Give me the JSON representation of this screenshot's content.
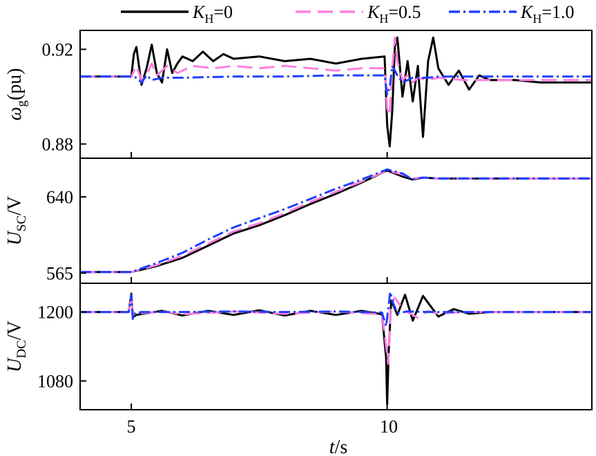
{
  "legend": [
    {
      "sym": "K",
      "sub": "H",
      "val": "=0",
      "color": "#000000",
      "dash": ""
    },
    {
      "sym": "K",
      "sub": "H",
      "val": "=0.5",
      "color": "#ff7fe0",
      "dash": "22,10"
    },
    {
      "sym": "K",
      "sub": "H",
      "val": "=1.0",
      "color": "#1f3fff",
      "dash": "16,5,3,5"
    }
  ],
  "xaxis": {
    "sym": "t",
    "unit": "/s",
    "ticks": [
      "5",
      "10"
    ]
  },
  "chart_data": [
    {
      "type": "line",
      "ylabel": {
        "sym": "ω",
        "sub": "g",
        "unit": "(pu)"
      },
      "xlim": [
        4,
        14
      ],
      "ylim": [
        0.874,
        0.928
      ],
      "yticks": [
        0.92,
        0.88
      ],
      "ytick_labels": [
        "0.92",
        "0.88"
      ],
      "series": [
        {
          "name": "KH=0",
          "color": "#000000",
          "x": [
            4,
            5,
            5.05,
            5.1,
            5.2,
            5.3,
            5.4,
            5.5,
            5.6,
            5.7,
            5.8,
            5.9,
            6.0,
            6.2,
            6.4,
            6.6,
            6.8,
            7,
            7.5,
            8,
            8.5,
            9,
            9.5,
            9.95,
            10.0,
            10.05,
            10.1,
            10.15,
            10.2,
            10.3,
            10.4,
            10.5,
            10.6,
            10.7,
            10.8,
            10.9,
            11.0,
            11.2,
            11.4,
            11.6,
            11.8,
            12,
            12.5,
            13,
            13.5,
            14
          ],
          "y": [
            0.9085,
            0.9085,
            0.918,
            0.921,
            0.905,
            0.912,
            0.922,
            0.91,
            0.906,
            0.92,
            0.91,
            0.914,
            0.917,
            0.915,
            0.919,
            0.915,
            0.918,
            0.916,
            0.917,
            0.915,
            0.916,
            0.914,
            0.916,
            0.917,
            0.888,
            0.879,
            0.894,
            0.921,
            0.925,
            0.9,
            0.915,
            0.898,
            0.913,
            0.883,
            0.915,
            0.925,
            0.912,
            0.905,
            0.911,
            0.903,
            0.909,
            0.907,
            0.907,
            0.906,
            0.906,
            0.906
          ]
        },
        {
          "name": "KH=0.5",
          "color": "#ff7fe0",
          "x": [
            4,
            5,
            5.1,
            5.2,
            5.3,
            5.4,
            5.5,
            5.7,
            5.9,
            6.2,
            6.6,
            7,
            7.5,
            8,
            8.5,
            9,
            9.5,
            9.95,
            10.0,
            10.05,
            10.1,
            10.15,
            10.2,
            10.3,
            10.4,
            10.5,
            10.6,
            10.8,
            11,
            11.5,
            12,
            13,
            14
          ],
          "y": [
            0.9085,
            0.9085,
            0.913,
            0.907,
            0.909,
            0.914,
            0.909,
            0.913,
            0.91,
            0.913,
            0.912,
            0.913,
            0.912,
            0.913,
            0.912,
            0.911,
            0.912,
            0.912,
            0.895,
            0.892,
            0.912,
            0.925,
            0.915,
            0.907,
            0.909,
            0.906,
            0.908,
            0.907,
            0.908,
            0.907,
            0.907,
            0.907,
            0.907
          ]
        },
        {
          "name": "KH=1.0",
          "color": "#1f3fff",
          "x": [
            4,
            5,
            5.1,
            5.2,
            5.3,
            5.4,
            5.6,
            6,
            7,
            8,
            9,
            9.95,
            10.0,
            10.05,
            10.1,
            10.2,
            10.3,
            10.5,
            10.8,
            11,
            11.5,
            12,
            13,
            14
          ],
          "y": [
            0.9085,
            0.9085,
            0.908,
            0.906,
            0.909,
            0.907,
            0.908,
            0.908,
            0.9085,
            0.9085,
            0.909,
            0.909,
            0.901,
            0.904,
            0.913,
            0.909,
            0.906,
            0.908,
            0.908,
            0.9085,
            0.9085,
            0.9085,
            0.9085,
            0.9085
          ]
        }
      ]
    },
    {
      "type": "line",
      "ylabel": {
        "sym": "U",
        "sub": "SC",
        "unit": "/V"
      },
      "xlim": [
        4,
        14
      ],
      "ylim": [
        555,
        678
      ],
      "yticks": [
        640,
        565
      ],
      "ytick_labels": [
        "640",
        "565"
      ],
      "series": [
        {
          "name": "KH=0",
          "color": "#000000",
          "x": [
            4,
            5,
            5.5,
            6,
            6.5,
            7,
            7.5,
            8,
            8.5,
            9,
            9.5,
            10,
            10.3,
            10.5,
            10.7,
            11,
            11.5,
            12,
            14
          ],
          "y": [
            566,
            566,
            572,
            580,
            592,
            604,
            612,
            622,
            633,
            643,
            654,
            666,
            660,
            657,
            659,
            658,
            658,
            658,
            658
          ]
        },
        {
          "name": "KH=0.5",
          "color": "#ff7fe0",
          "x": [
            4,
            5,
            5.5,
            6,
            6.5,
            7,
            7.5,
            8,
            8.5,
            9,
            9.5,
            10,
            10.3,
            10.5,
            10.7,
            11,
            14
          ],
          "y": [
            566,
            566,
            573,
            582,
            594,
            606,
            614,
            624,
            635,
            645,
            655,
            666,
            662,
            658,
            659,
            658,
            658
          ]
        },
        {
          "name": "KH=1.0",
          "color": "#1f3fff",
          "x": [
            4,
            5,
            5.5,
            6,
            6.5,
            7,
            7.5,
            8,
            8.5,
            9,
            9.5,
            10,
            10.3,
            10.5,
            10.7,
            11,
            14
          ],
          "y": [
            566,
            566,
            575,
            585,
            598,
            610,
            619,
            628,
            638,
            648,
            657,
            667,
            663,
            657,
            659,
            658,
            658
          ]
        }
      ]
    },
    {
      "type": "line",
      "ylabel": {
        "sym": "U",
        "sub": "DC",
        "unit": "/V"
      },
      "xlim": [
        4,
        14
      ],
      "ylim": [
        1030,
        1250
      ],
      "yticks": [
        1200,
        1080
      ],
      "ytick_labels": [
        "1200",
        "1080"
      ],
      "series": [
        {
          "name": "KH=0",
          "color": "#000000",
          "x": [
            4,
            4.95,
            5.0,
            5.02,
            5.05,
            5.1,
            5.3,
            5.6,
            6,
            6.5,
            7,
            7.5,
            8,
            8.5,
            9,
            9.5,
            9.9,
            9.98,
            10.0,
            10.03,
            10.08,
            10.13,
            10.2,
            10.35,
            10.5,
            10.7,
            11,
            11.3,
            11.6,
            12,
            14
          ],
          "y": [
            1200,
            1200,
            1232,
            1205,
            1192,
            1195,
            1198,
            1202,
            1194,
            1202,
            1195,
            1203,
            1194,
            1202,
            1195,
            1202,
            1196,
            1120,
            1040,
            1130,
            1220,
            1210,
            1195,
            1230,
            1185,
            1228,
            1192,
            1205,
            1197,
            1200,
            1200
          ]
        },
        {
          "name": "KH=0.5",
          "color": "#ff7fe0",
          "x": [
            4,
            4.95,
            5.0,
            5.03,
            5.08,
            5.2,
            5.6,
            6,
            7,
            8,
            9,
            9.9,
            9.98,
            10.02,
            10.08,
            10.15,
            10.3,
            10.6,
            10.8,
            11,
            11.5,
            14
          ],
          "y": [
            1200,
            1200,
            1225,
            1200,
            1193,
            1198,
            1201,
            1196,
            1201,
            1197,
            1201,
            1196,
            1140,
            1110,
            1215,
            1225,
            1205,
            1190,
            1202,
            1197,
            1200,
            1200
          ]
        },
        {
          "name": "KH=1.0",
          "color": "#1f3fff",
          "x": [
            4,
            4.95,
            5.0,
            5.03,
            5.08,
            5.2,
            6,
            7,
            8,
            9,
            9.9,
            9.98,
            10.02,
            10.06,
            10.12,
            10.2,
            10.4,
            10.8,
            14
          ],
          "y": [
            1200,
            1200,
            1230,
            1188,
            1198,
            1200,
            1200,
            1201,
            1200,
            1201,
            1199,
            1175,
            1205,
            1235,
            1215,
            1198,
            1201,
            1200,
            1200
          ]
        }
      ]
    }
  ]
}
